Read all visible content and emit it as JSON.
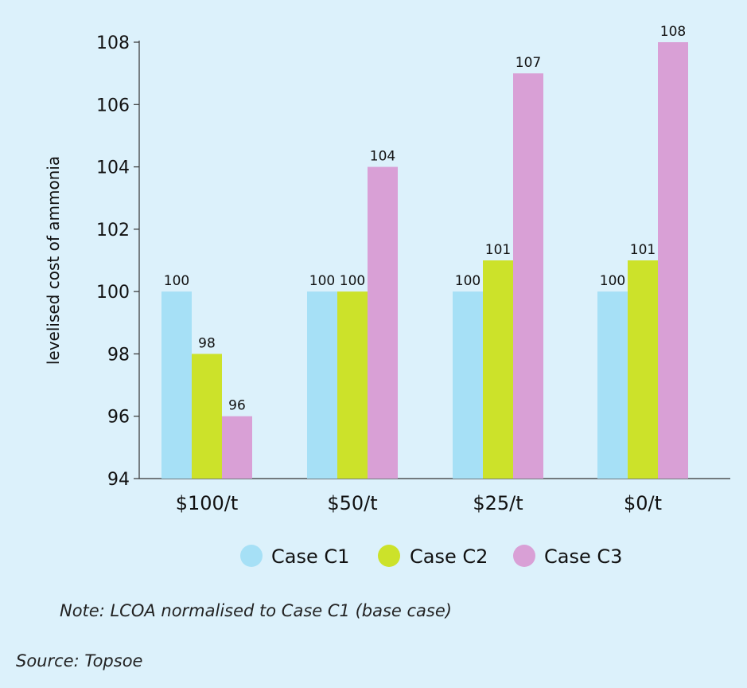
{
  "chart_data": {
    "type": "bar",
    "categories": [
      "$100/t",
      "$50/t",
      "$25/t",
      "$0/t"
    ],
    "series": [
      {
        "name": "Case C1",
        "color": "#a6e0f6",
        "values": [
          100,
          100,
          100,
          100
        ]
      },
      {
        "name": "Case C2",
        "color": "#cce22a",
        "values": [
          98,
          100,
          101,
          101
        ]
      },
      {
        "name": "Case C3",
        "color": "#d9a0d6",
        "values": [
          96,
          104,
          107,
          108
        ]
      }
    ],
    "ylabel": "levelised cost of ammonia",
    "ylim": [
      94,
      108
    ],
    "yticks": [
      94,
      96,
      98,
      100,
      102,
      104,
      106,
      108
    ],
    "grid": false,
    "legend_position": "bottom"
  },
  "note": "Note: LCOA normalised to Case C1 (base case)",
  "source": "Source: Topsoe"
}
